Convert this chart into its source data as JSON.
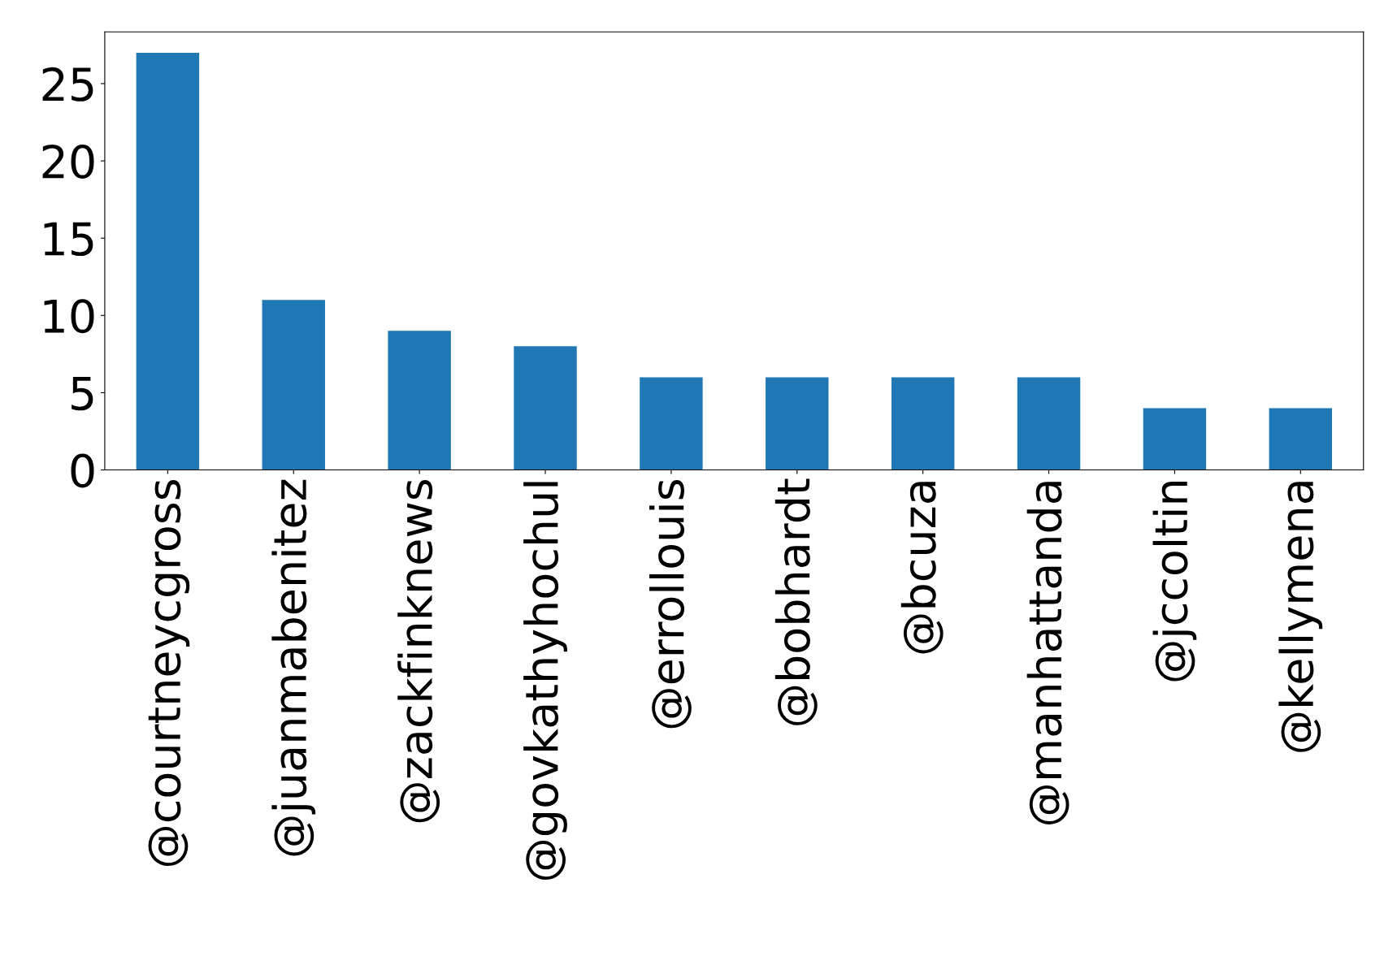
{
  "chart_data": {
    "type": "bar",
    "categories": [
      "@courtneycgross",
      "@juanmabenitez",
      "@zackfinknews",
      "@govkathyhochul",
      "@errollouis",
      "@bobhardt",
      "@bcuza",
      "@manhattanda",
      "@jccoltin",
      "@kellymena"
    ],
    "values": [
      27,
      11,
      9,
      8,
      6,
      6,
      6,
      6,
      4,
      4
    ],
    "color": "#1f77b4",
    "ylim": [
      0,
      28.35
    ],
    "yticks": [
      0,
      5,
      10,
      15,
      20,
      25
    ],
    "grid": false,
    "legend": false
  }
}
